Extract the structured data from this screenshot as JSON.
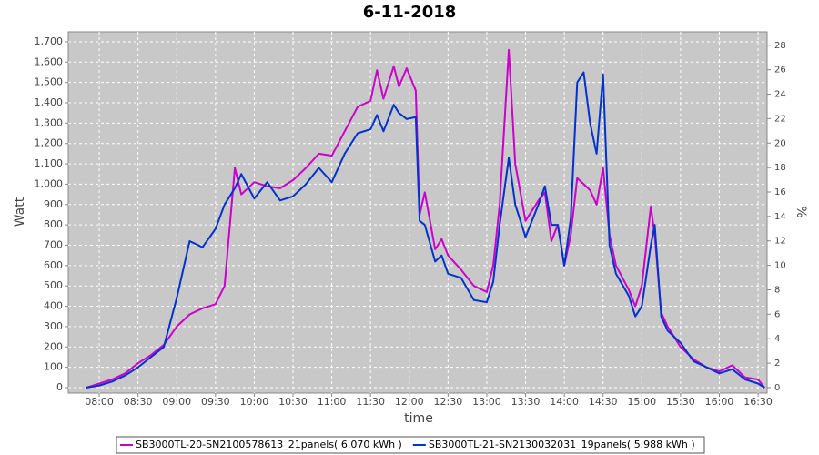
{
  "chart_data": {
    "type": "line",
    "title": "6-11-2018",
    "x_label": "time",
    "y_label": "Watt",
    "y2_label": "%",
    "x": [
      "07:50",
      "08:00",
      "08:10",
      "08:20",
      "08:30",
      "08:40",
      "08:50",
      "09:00",
      "09:10",
      "09:20",
      "09:30",
      "09:37",
      "09:45",
      "09:50",
      "10:00",
      "10:10",
      "10:20",
      "10:30",
      "10:40",
      "10:50",
      "11:00",
      "11:10",
      "11:20",
      "11:30",
      "11:35",
      "11:40",
      "11:48",
      "11:52",
      "11:58",
      "12:05",
      "12:08",
      "12:12",
      "12:20",
      "12:25",
      "12:30",
      "12:40",
      "12:50",
      "13:00",
      "13:05",
      "13:10",
      "13:17",
      "13:22",
      "13:30",
      "13:40",
      "13:45",
      "13:50",
      "13:55",
      "14:00",
      "14:05",
      "14:10",
      "14:15",
      "14:20",
      "14:25",
      "14:30",
      "14:35",
      "14:40",
      "14:50",
      "14:55",
      "15:00",
      "15:07",
      "15:10",
      "15:15",
      "15:20",
      "15:30",
      "15:40",
      "15:50",
      "16:00",
      "16:10",
      "16:20",
      "16:30",
      "16:35"
    ],
    "series": [
      {
        "name": "SB3000TL-20-SN2100578613_21panels( 6.070 kWh )",
        "color": "#cc00cc",
        "values": [
          0,
          20,
          40,
          70,
          120,
          160,
          210,
          300,
          360,
          390,
          410,
          500,
          1080,
          950,
          1010,
          990,
          980,
          1020,
          1080,
          1150,
          1140,
          1260,
          1380,
          1410,
          1560,
          1420,
          1580,
          1480,
          1570,
          1460,
          850,
          960,
          680,
          730,
          650,
          580,
          500,
          470,
          600,
          900,
          1660,
          1100,
          820,
          920,
          960,
          720,
          800,
          600,
          750,
          1030,
          1000,
          970,
          900,
          1080,
          750,
          600,
          480,
          400,
          500,
          890,
          750,
          370,
          300,
          200,
          140,
          100,
          80,
          110,
          50,
          40,
          0
        ]
      },
      {
        "name": "SB3000TL-21-SN2130032031_19panels( 5.988 kWh )",
        "color": "#0033cc",
        "values": [
          0,
          10,
          30,
          60,
          100,
          150,
          200,
          440,
          720,
          690,
          780,
          900,
          980,
          1050,
          930,
          1010,
          920,
          940,
          1000,
          1080,
          1010,
          1150,
          1250,
          1270,
          1340,
          1260,
          1390,
          1350,
          1320,
          1330,
          820,
          800,
          620,
          650,
          560,
          540,
          430,
          420,
          520,
          800,
          1130,
          900,
          740,
          900,
          990,
          800,
          800,
          600,
          830,
          1500,
          1550,
          1300,
          1150,
          1540,
          700,
          560,
          450,
          350,
          400,
          700,
          800,
          350,
          280,
          220,
          130,
          100,
          70,
          90,
          40,
          20,
          0
        ]
      }
    ],
    "xlim": [
      "07:36",
      "16:37"
    ],
    "xticks": [
      "08:00",
      "08:30",
      "09:00",
      "09:30",
      "10:00",
      "10:30",
      "11:00",
      "11:30",
      "12:00",
      "12:30",
      "13:00",
      "13:30",
      "14:00",
      "14:30",
      "15:00",
      "15:30",
      "16:00",
      "16:30"
    ],
    "ylim": [
      -27,
      1749
    ],
    "yticks": [
      0,
      100,
      200,
      300,
      400,
      500,
      600,
      700,
      800,
      900,
      {
        "value": 1000,
        "label": "1,000"
      },
      {
        "value": 1100,
        "label": "1,100"
      },
      {
        "value": 1200,
        "label": "1,200"
      },
      {
        "value": 1300,
        "label": "1,300"
      },
      {
        "value": 1400,
        "label": "1,400"
      },
      {
        "value": 1500,
        "label": "1,500"
      },
      {
        "value": 1600,
        "label": "1,600"
      },
      {
        "value": 1700,
        "label": "1,700"
      }
    ],
    "y2lim": [
      -0.45,
      29.1
    ],
    "y2ticks": [
      0,
      2,
      4,
      6,
      8,
      10,
      12,
      14,
      16,
      18,
      20,
      22,
      24,
      26,
      28
    ],
    "grid": true
  }
}
